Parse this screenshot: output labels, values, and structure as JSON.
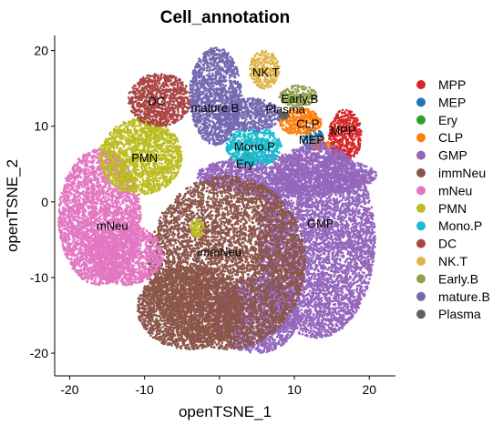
{
  "chart_data": {
    "type": "scatter",
    "title": "Cell_annotation",
    "xlabel": "openTSNE_1",
    "ylabel": "openTSNE_2",
    "xlim": [
      -22,
      23.5
    ],
    "ylim": [
      -23,
      22
    ],
    "xticks": [
      -20,
      -10,
      0,
      10,
      20
    ],
    "yticks": [
      -20,
      -10,
      0,
      10,
      20
    ],
    "xtick_labels": [
      "-20",
      "-10",
      "0",
      "10",
      "20"
    ],
    "ytick_labels": [
      "-20",
      "-10",
      "0",
      "10",
      "20"
    ],
    "legend_position": "right",
    "series": [
      {
        "name": "MPP",
        "color": "#d62728",
        "regions": [
          {
            "cx": 16.8,
            "cy": 8.8,
            "rx": 2.2,
            "ry": 3.4
          }
        ],
        "label": {
          "text": "MPP",
          "x": 16.5,
          "y": 9.5
        }
      },
      {
        "name": "MEP",
        "color": "#1f77b4",
        "regions": [
          {
            "cx": 12.5,
            "cy": 8.3,
            "rx": 1.4,
            "ry": 1.4
          }
        ],
        "label": {
          "text": "MEP",
          "x": 12.3,
          "y": 8.3
        }
      },
      {
        "name": "Ery",
        "color": "#2ca02c",
        "regions": [
          {
            "cx": 3.6,
            "cy": 6.0,
            "rx": 0.6,
            "ry": 0.6
          }
        ],
        "label": {
          "text": "Ery",
          "x": 3.4,
          "y": 5.1
        }
      },
      {
        "name": "CLP",
        "color": "#ff7f0e",
        "regions": [
          {
            "cx": 10.8,
            "cy": 10.6,
            "rx": 2.8,
            "ry": 1.8
          },
          {
            "cx": 13.4,
            "cy": 7.6,
            "rx": 1.4,
            "ry": 0.8
          }
        ],
        "label": {
          "text": "CLP",
          "x": 11.8,
          "y": 10.4
        }
      },
      {
        "name": "GMP",
        "color": "#9467bd",
        "regions": [
          {
            "cx": 13.0,
            "cy": -5.0,
            "rx": 7.8,
            "ry": 13.0
          },
          {
            "cx": 9.0,
            "cy": 3.5,
            "rx": 12.0,
            "ry": 2.8
          },
          {
            "cx": 5.0,
            "cy": -15.0,
            "rx": 5.5,
            "ry": 5.0
          }
        ],
        "label": {
          "text": "GMP",
          "x": 13.5,
          "y": -2.8
        }
      },
      {
        "name": "immNeu",
        "color": "#8c564b",
        "regions": [
          {
            "cx": 1.0,
            "cy": -8.0,
            "rx": 10.5,
            "ry": 11.5
          },
          {
            "cx": -4.0,
            "cy": -14.0,
            "rx": 7.0,
            "ry": 5.5
          }
        ],
        "label": {
          "text": "immNeu",
          "x": 0.0,
          "y": -6.6
        }
      },
      {
        "name": "mNeu",
        "color": "#e377c2",
        "regions": [
          {
            "cx": -16.0,
            "cy": -2.0,
            "rx": 5.5,
            "ry": 9.0
          },
          {
            "cx": -12.5,
            "cy": -7.0,
            "rx": 5.0,
            "ry": 4.0
          }
        ],
        "label": {
          "text": "mNeu",
          "x": -14.3,
          "y": -3.1
        }
      },
      {
        "name": "PMN",
        "color": "#bcbd22",
        "regions": [
          {
            "cx": -10.5,
            "cy": 6.0,
            "rx": 5.5,
            "ry": 5.0
          },
          {
            "cx": -3.0,
            "cy": -3.5,
            "rx": 0.9,
            "ry": 1.3
          }
        ],
        "label": {
          "text": "PMN",
          "x": -10.0,
          "y": 5.9
        }
      },
      {
        "name": "Mono.P",
        "color": "#17becf",
        "regions": [
          {
            "cx": 4.6,
            "cy": 7.3,
            "rx": 3.7,
            "ry": 2.6
          }
        ],
        "label": {
          "text": "Mono.P",
          "x": 4.7,
          "y": 7.4
        }
      },
      {
        "name": "DC",
        "color": "#aa4644",
        "regions": [
          {
            "cx": -8.0,
            "cy": 13.5,
            "rx": 4.2,
            "ry": 3.5
          }
        ],
        "label": {
          "text": "DC",
          "x": -8.4,
          "y": 13.4
        }
      },
      {
        "name": "NK.T",
        "color": "#e0b449",
        "regions": [
          {
            "cx": 6.0,
            "cy": 17.5,
            "rx": 2.0,
            "ry": 2.5
          }
        ],
        "label": {
          "text": "NK.T",
          "x": 6.2,
          "y": 17.2
        }
      },
      {
        "name": "Early.B",
        "color": "#8fa14c",
        "regions": [
          {
            "cx": 10.5,
            "cy": 14.0,
            "rx": 2.5,
            "ry": 1.4
          }
        ],
        "label": {
          "text": "Early.B",
          "x": 10.7,
          "y": 13.7
        }
      },
      {
        "name": "mature.B",
        "color": "#7669b0",
        "regions": [
          {
            "cx": -0.5,
            "cy": 14.0,
            "rx": 3.5,
            "ry": 6.5
          },
          {
            "cx": 4.0,
            "cy": 11.5,
            "rx": 4.2,
            "ry": 2.2
          }
        ],
        "label": {
          "text": "mature.B",
          "x": -0.6,
          "y": 12.5
        }
      },
      {
        "name": "Plasma",
        "color": "#606060",
        "regions": [
          {
            "cx": 8.6,
            "cy": 11.4,
            "rx": 0.6,
            "ry": 0.5
          }
        ],
        "label": {
          "text": "Plasma",
          "x": 8.8,
          "y": 12.3
        }
      }
    ]
  }
}
